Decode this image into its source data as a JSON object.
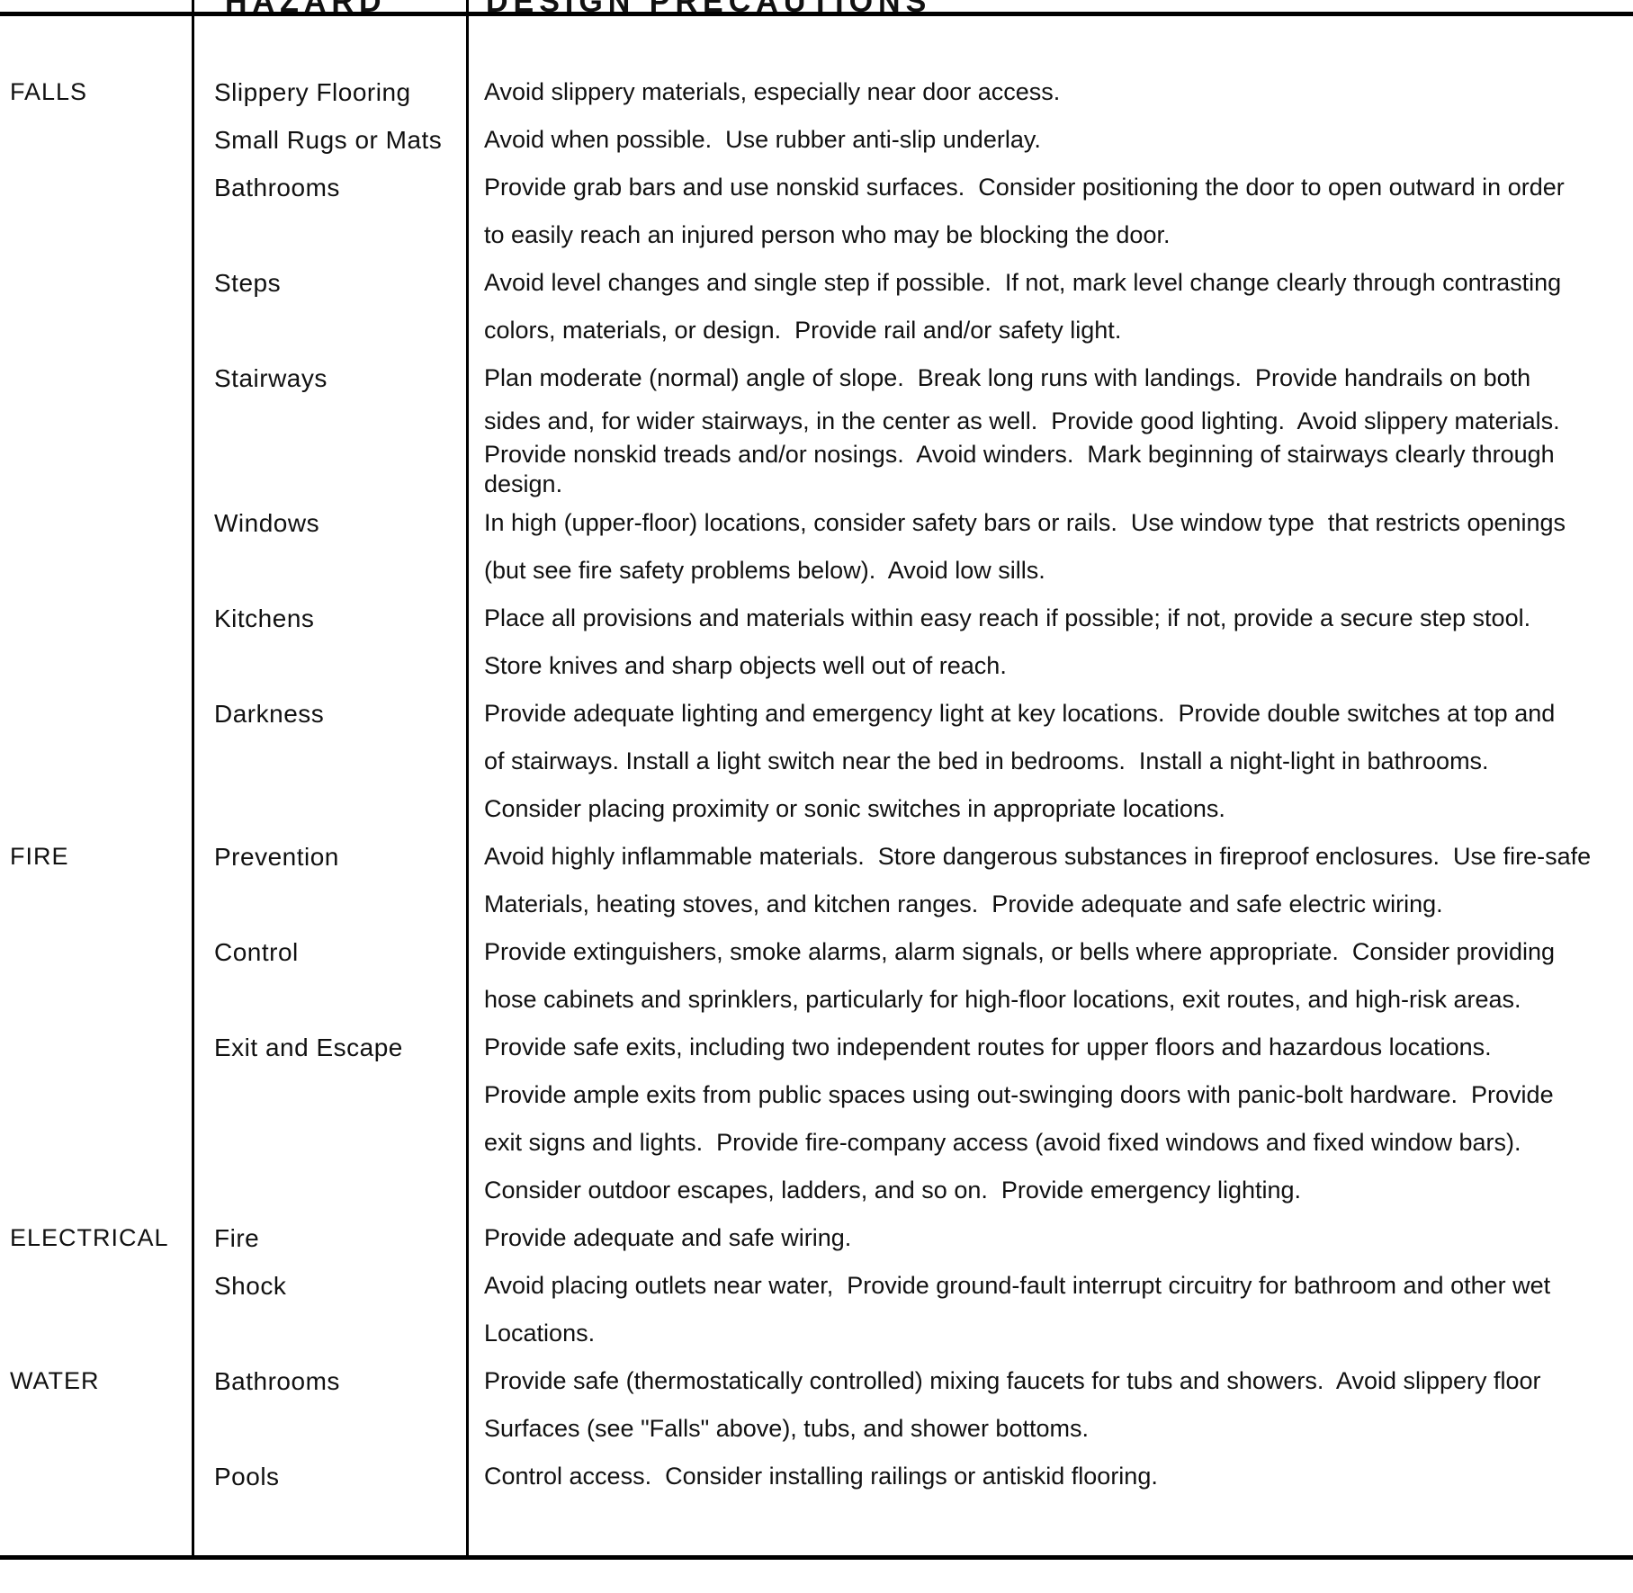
{
  "page": {
    "background": "#ffffff",
    "text_color": "#111111",
    "line_color": "#000000"
  },
  "table": {
    "header": {
      "hazard_label": "HAZARD",
      "precautions_label": "DESIGN PRECAUTIONS"
    },
    "rows": [
      {
        "category": "FALLS",
        "hazard": "Slippery Flooring",
        "precautions": [
          "Avoid slippery materials, especially near door access."
        ]
      },
      {
        "category": "",
        "hazard": "Small Rugs or Mats",
        "precautions": [
          "Avoid when possible.  Use rubber anti-slip underlay."
        ]
      },
      {
        "category": "",
        "hazard": "Bathrooms",
        "precautions": [
          "Provide grab bars and use nonskid surfaces.  Consider positioning the door to open outward in order",
          "to easily reach an injured person who may be blocking the door."
        ]
      },
      {
        "category": "",
        "hazard": "Steps",
        "precautions": [
          "Avoid level changes and single step if possible.  If not, mark level change clearly through contrasting",
          "colors, materials, or design.  Provide rail and/or safety light."
        ]
      },
      {
        "category": "",
        "hazard": "Stairways",
        "compact": true,
        "precautions": [
          "Plan moderate (normal) angle of slope.  Break long runs with landings.  Provide handrails on both",
          "sides and, for wider stairways, in the center as well.  Provide good lighting.  Avoid slippery materials.",
          "Provide nonskid treads and/or nosings.  Avoid winders.  Mark beginning of stairways clearly through",
          "design."
        ]
      },
      {
        "category": "",
        "hazard": "Windows",
        "precautions": [
          "In high (upper-floor) locations, consider safety bars or rails.  Use window type  that restricts openings",
          "(but see fire safety problems below).  Avoid low sills."
        ]
      },
      {
        "category": "",
        "hazard": "Kitchens",
        "precautions": [
          "Place all provisions and materials within easy reach if possible; if not, provide a secure step stool.",
          "Store knives and sharp objects well out of reach."
        ]
      },
      {
        "category": "",
        "hazard": "Darkness",
        "precautions": [
          "Provide adequate lighting and emergency light at key locations.  Provide double switches at top and",
          "of stairways. Install a light switch near the bed in bedrooms.  Install a night-light in bathrooms.",
          "Consider placing proximity or sonic switches in appropriate locations."
        ]
      },
      {
        "category": "FIRE",
        "hazard": "Prevention",
        "precautions": [
          "Avoid highly inflammable materials.  Store dangerous substances in fireproof enclosures.  Use fire-safe",
          "Materials, heating stoves, and kitchen ranges.  Provide adequate and safe electric wiring."
        ]
      },
      {
        "category": "",
        "hazard": "Control",
        "precautions": [
          "Provide extinguishers, smoke alarms, alarm signals, or bells where appropriate.  Consider providing",
          "hose cabinets and sprinklers, particularly for high-floor locations, exit routes, and high-risk areas."
        ]
      },
      {
        "category": "",
        "hazard": "Exit and Escape",
        "precautions": [
          "Provide safe exits, including two independent routes for upper floors and hazardous locations.",
          "Provide ample exits from public spaces using out-swinging doors with panic-bolt hardware.  Provide",
          "exit signs and lights.  Provide fire-company access (avoid fixed windows and fixed window bars).",
          "Consider outdoor escapes, ladders, and so on.  Provide emergency lighting."
        ]
      },
      {
        "category": "ELECTRICAL",
        "hazard": "Fire",
        "precautions": [
          "Provide adequate and safe wiring."
        ]
      },
      {
        "category": "",
        "hazard": "Shock",
        "precautions": [
          "Avoid placing outlets near water,  Provide ground-fault interrupt circuitry for bathroom and other wet",
          "Locations."
        ]
      },
      {
        "category": "WATER",
        "hazard": "Bathrooms",
        "precautions": [
          "Provide safe (thermostatically controlled) mixing faucets for tubs and showers.  Avoid slippery floor",
          "Surfaces (see \"Falls\" above), tubs, and shower bottoms."
        ]
      },
      {
        "category": "",
        "hazard": "Pools",
        "precautions": [
          "Control access.  Consider installing railings or antiskid flooring."
        ]
      }
    ]
  }
}
